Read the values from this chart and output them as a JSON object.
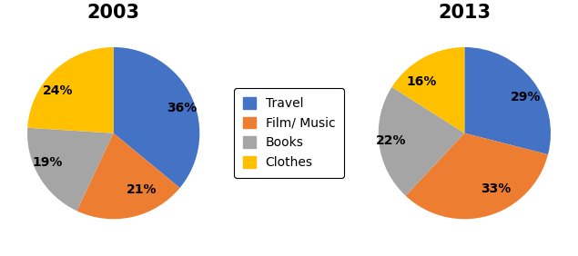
{
  "chart_2003": {
    "title": "2003",
    "values": [
      36,
      21,
      19,
      24
    ],
    "labels": [
      "36%",
      "21%",
      "19%",
      "24%"
    ],
    "colors": [
      "#4472C4",
      "#ED7D31",
      "#A5A5A5",
      "#FFC000"
    ],
    "startangle": 90
  },
  "chart_2013": {
    "title": "2013",
    "values": [
      29,
      33,
      22,
      16
    ],
    "labels": [
      "29%",
      "33%",
      "22%",
      "16%"
    ],
    "colors": [
      "#4472C4",
      "#ED7D31",
      "#A5A5A5",
      "#FFC000"
    ],
    "startangle": 90
  },
  "legend_labels": [
    "Travel",
    "Film/ Music",
    "Books",
    "Clothes"
  ],
  "legend_colors": [
    "#4472C4",
    "#ED7D31",
    "#A5A5A5",
    "#FFC000"
  ],
  "title_fontsize": 15,
  "label_fontsize": 10,
  "legend_fontsize": 10,
  "background_color": "#FFFFFF"
}
